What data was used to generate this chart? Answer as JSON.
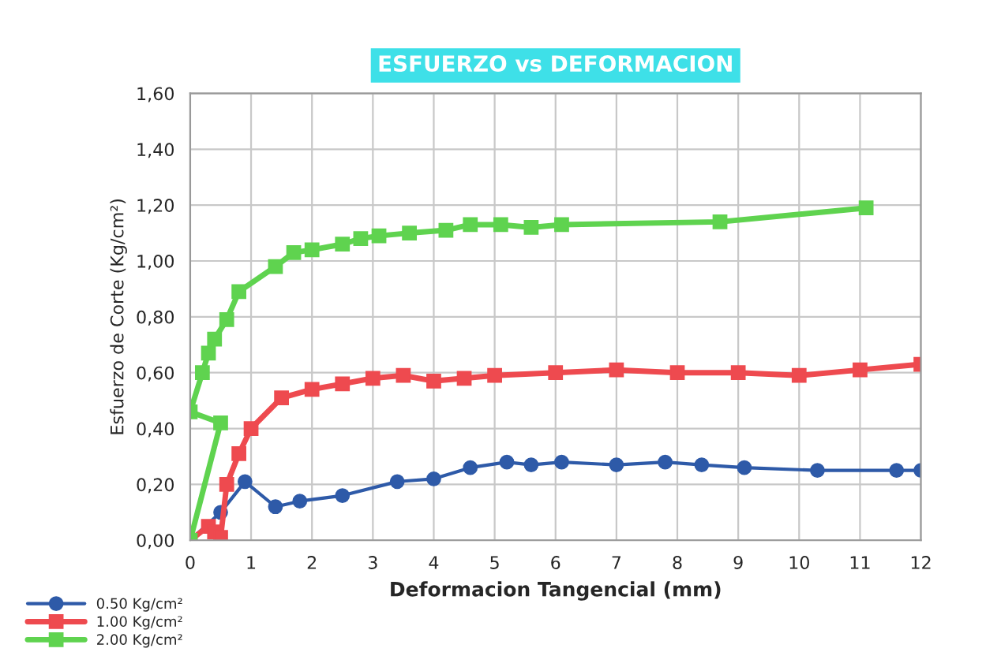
{
  "chart_data": {
    "type": "line",
    "title": "ESFUERZO vs DEFORMACION",
    "xlabel": "Deformacion Tangencial (mm)",
    "ylabel": "Esfuerzo de Corte (Kg/cm²)",
    "xlim": [
      0,
      12
    ],
    "xticks": [
      0,
      1,
      2,
      3,
      4,
      5,
      6,
      7,
      8,
      9,
      10,
      11,
      12
    ],
    "ylim": [
      0,
      1.6
    ],
    "yticks": [
      {
        "value": 0,
        "label": "0,00"
      },
      {
        "value": 0.2,
        "label": "0,20"
      },
      {
        "value": 0.4,
        "label": "0,40"
      },
      {
        "value": 0.6,
        "label": "0,60"
      },
      {
        "value": 0.8,
        "label": "0,80"
      },
      {
        "value": 1.0,
        "label": "1,00"
      },
      {
        "value": 1.2,
        "label": "1,20"
      },
      {
        "value": 1.4,
        "label": "1,40"
      },
      {
        "value": 1.6,
        "label": "1,60"
      }
    ],
    "grid": true,
    "legend": "bottom left",
    "line_style": "solid",
    "series": [
      {
        "name": "0.50 Kg/cm²",
        "color": "#2e5aa8",
        "marker": "circle",
        "x": [
          0,
          0.5,
          0.9,
          1.4,
          1.8,
          2.5,
          3.4,
          4,
          4.6,
          5.2,
          5.6,
          6.1,
          7,
          7.8,
          8.4,
          9.1,
          10.3,
          11.6,
          12
        ],
        "values": [
          0,
          0.1,
          0.21,
          0.12,
          0.14,
          0.16,
          0.21,
          0.22,
          0.26,
          0.28,
          0.27,
          0.28,
          0.27,
          0.28,
          0.27,
          0.26,
          0.25,
          0.25,
          0.25
        ]
      },
      {
        "name": "1.00 Kg/cm²",
        "color": "#ee4a4f",
        "marker": "square",
        "x": [
          0,
          0.3,
          0.4,
          0.5,
          0.6,
          0.8,
          1,
          1.5,
          2,
          2.5,
          3,
          3.5,
          4,
          4.5,
          5,
          6,
          7,
          8,
          9,
          10,
          11,
          12
        ],
        "values": [
          0,
          0.05,
          0.03,
          0.01,
          0.2,
          0.31,
          0.4,
          0.51,
          0.54,
          0.56,
          0.58,
          0.59,
          0.57,
          0.58,
          0.59,
          0.6,
          0.61,
          0.6,
          0.6,
          0.59,
          0.61,
          0.63
        ]
      },
      {
        "name": "2.00 Kg/cm²",
        "color": "#5fd34f",
        "marker": "square",
        "x": [
          0,
          0.5,
          0,
          0.2,
          0.3,
          0.4,
          0.6,
          0.8,
          1.4,
          1.7,
          2,
          2.5,
          2.8,
          3.1,
          3.6,
          4.2,
          4.6,
          5.1,
          5.6,
          6.1,
          8.7,
          11.1
        ],
        "values": [
          0,
          0.42,
          0.46,
          0.6,
          0.67,
          0.72,
          0.79,
          0.89,
          0.98,
          1.03,
          1.04,
          1.06,
          1.08,
          1.09,
          1.1,
          1.11,
          1.13,
          1.13,
          1.12,
          1.13,
          1.14,
          1.19
        ]
      }
    ]
  }
}
